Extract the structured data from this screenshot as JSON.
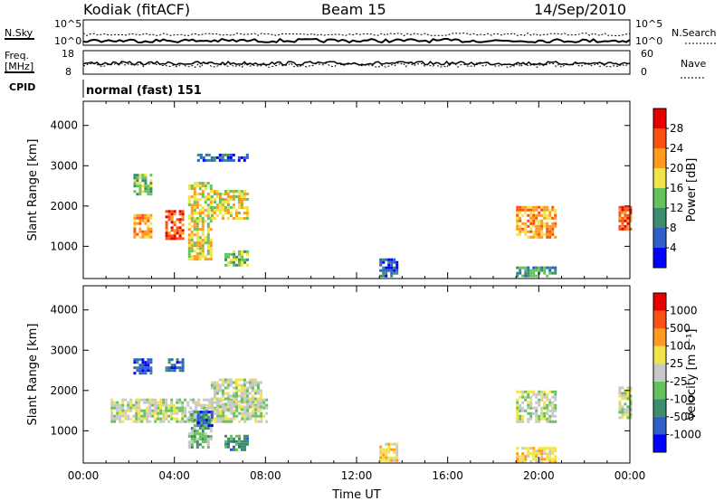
{
  "header": {
    "station": "Kodiak (fitACF)",
    "beam": "Beam 15",
    "date": "14/Sep/2010"
  },
  "strips": {
    "nsky_label": "N.Sky",
    "nsearch_label": "N.Search",
    "nsky_ticks": [
      "10^5",
      "10^0"
    ],
    "nsearch_ticks": [
      "10^5",
      "10^0"
    ],
    "freq_label": "Freq.",
    "freq_unit": "[MHz]",
    "freq_ticks": [
      "18",
      "8"
    ],
    "nave_label": "Nave",
    "nave_ticks": [
      "60",
      "0"
    ],
    "cpid_label": "CPID",
    "cpid_text": "normal (fast) 151"
  },
  "chart_data": [
    {
      "type": "heatmap",
      "name": "power",
      "ylabel": "Slant Range [km]",
      "xlabel": "",
      "x_ticks": [
        "00:00",
        "04:00",
        "08:00",
        "12:00",
        "16:00",
        "20:00",
        "00:00"
      ],
      "y_ticks": [
        1000,
        2000,
        3000,
        4000
      ],
      "ylim": [
        200,
        4600
      ],
      "xlim": [
        0,
        24
      ],
      "colorbar": {
        "label": "Power [dB]",
        "ticks": [
          "4",
          "8",
          "12",
          "16",
          "20",
          "24",
          "28"
        ],
        "colors": [
          "#0000ff",
          "#2f5fc8",
          "#3c8c6e",
          "#66c25a",
          "#f2e34b",
          "#ff9a1e",
          "#ff5014",
          "#e60000"
        ]
      },
      "regions": [
        {
          "t0": 2.2,
          "t1": 3.0,
          "r0": 1200,
          "r1": 1800,
          "level": 5
        },
        {
          "t0": 2.2,
          "t1": 3.0,
          "r0": 2300,
          "r1": 2800,
          "level": 3
        },
        {
          "t0": 3.6,
          "t1": 4.4,
          "r0": 1200,
          "r1": 1900,
          "level": 6
        },
        {
          "t0": 4.6,
          "t1": 5.6,
          "r0": 700,
          "r1": 2600,
          "level": 4
        },
        {
          "t0": 5.6,
          "t1": 7.2,
          "r0": 1700,
          "r1": 2400,
          "level": 4
        },
        {
          "t0": 6.2,
          "t1": 7.2,
          "r0": 500,
          "r1": 900,
          "level": 3
        },
        {
          "t0": 5.0,
          "t1": 7.2,
          "r0": 3100,
          "r1": 3300,
          "level": 1
        },
        {
          "t0": 13.0,
          "t1": 13.8,
          "r0": 250,
          "r1": 700,
          "level": 1
        },
        {
          "t0": 19.0,
          "t1": 20.7,
          "r0": 1200,
          "r1": 2000,
          "level": 5
        },
        {
          "t0": 19.0,
          "t1": 20.7,
          "r0": 250,
          "r1": 500,
          "level": 2
        },
        {
          "t0": 23.5,
          "t1": 24.0,
          "r0": 1400,
          "r1": 2000,
          "level": 6
        }
      ]
    },
    {
      "type": "heatmap",
      "name": "velocity",
      "ylabel": "Slant Range [km]",
      "xlabel": "Time UT",
      "x_ticks": [
        "00:00",
        "04:00",
        "08:00",
        "12:00",
        "16:00",
        "20:00",
        "00:00"
      ],
      "y_ticks": [
        1000,
        2000,
        3000,
        4000
      ],
      "ylim": [
        200,
        4600
      ],
      "xlim": [
        0,
        24
      ],
      "colorbar": {
        "label": "Velocity [m s⁻¹]",
        "ticks": [
          "1000",
          "500",
          "100",
          "25",
          "-25",
          "-100",
          "-500",
          "-1000"
        ],
        "colors": [
          "#0000ff",
          "#2f5fc8",
          "#3c8c6e",
          "#66c25a",
          "#c8c8c8",
          "#f2e34b",
          "#ff9a1e",
          "#ff5014",
          "#e60000"
        ]
      },
      "regions": [
        {
          "t0": 1.2,
          "t1": 8.0,
          "r0": 1200,
          "r1": 1800,
          "level": 4
        },
        {
          "t0": 5.6,
          "t1": 7.8,
          "r0": 1500,
          "r1": 2300,
          "level": 4
        },
        {
          "t0": 2.2,
          "t1": 3.0,
          "r0": 2400,
          "r1": 2800,
          "level": 1
        },
        {
          "t0": 3.6,
          "t1": 4.4,
          "r0": 2500,
          "r1": 2800,
          "level": 1
        },
        {
          "t0": 4.6,
          "t1": 5.6,
          "r0": 600,
          "r1": 1500,
          "level": 3
        },
        {
          "t0": 5.0,
          "t1": 5.6,
          "r0": 1100,
          "r1": 1500,
          "level": 1
        },
        {
          "t0": 6.2,
          "t1": 7.2,
          "r0": 500,
          "r1": 900,
          "level": 2
        },
        {
          "t0": 13.0,
          "t1": 13.8,
          "r0": 250,
          "r1": 700,
          "level": 5
        },
        {
          "t0": 19.0,
          "t1": 20.7,
          "r0": 1200,
          "r1": 2000,
          "level": 4
        },
        {
          "t0": 19.0,
          "t1": 20.7,
          "r0": 250,
          "r1": 600,
          "level": 5
        },
        {
          "t0": 23.5,
          "t1": 24.0,
          "r0": 1300,
          "r1": 2100,
          "level": 4
        }
      ]
    }
  ]
}
